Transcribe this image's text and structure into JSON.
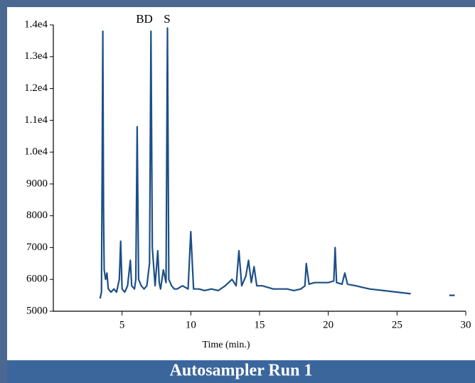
{
  "chart_data": {
    "type": "line",
    "title": "Autosampler Run 1",
    "x_label": "Time (min.)",
    "annotations": [
      "BD",
      "S"
    ],
    "xlim": [
      0,
      30
    ],
    "xticks": [
      5,
      10,
      15,
      20,
      25,
      30
    ],
    "ylim": [
      5000,
      14000
    ],
    "yticks": [
      5000,
      6000,
      7000,
      8000,
      9000,
      {
        "value": 10000,
        "label": "1.0e4"
      },
      {
        "value": 11000,
        "label": "1.1e4"
      },
      {
        "value": 12000,
        "label": "1.2e4"
      },
      {
        "value": 13000,
        "label": "1.3e4"
      },
      {
        "value": 14000,
        "label": "1.4e4"
      }
    ],
    "color": "#1c4f86",
    "x": [
      3.4,
      3.5,
      3.55,
      3.6,
      3.65,
      3.7,
      3.8,
      3.9,
      4.0,
      4.2,
      4.4,
      4.6,
      4.8,
      4.9,
      5.0,
      5.2,
      5.4,
      5.6,
      5.7,
      5.9,
      6.0,
      6.1,
      6.2,
      6.4,
      6.6,
      6.8,
      7.0,
      7.1,
      7.2,
      7.4,
      7.6,
      7.7,
      7.8,
      8.0,
      8.2,
      8.3,
      8.4,
      8.6,
      8.8,
      9.0,
      9.4,
      9.8,
      10.0,
      10.2,
      10.6,
      11.0,
      11.5,
      12.0,
      12.5,
      13.0,
      13.3,
      13.5,
      13.7,
      14.0,
      14.2,
      14.4,
      14.6,
      14.8,
      15.2,
      15.6,
      16.0,
      16.5,
      17.0,
      17.5,
      18.0,
      18.3,
      18.4,
      18.6,
      19.0,
      19.5,
      20.0,
      20.4,
      20.5,
      20.6,
      21.0,
      21.2,
      21.4,
      22.0,
      23.0,
      24.0,
      25.0,
      26.0,
      27.0,
      28.8,
      29.2
    ],
    "values": [
      5400,
      5600,
      9200,
      13800,
      8200,
      6300,
      6000,
      6200,
      5700,
      5600,
      5700,
      5600,
      6000,
      7200,
      5700,
      5600,
      5800,
      6600,
      5800,
      5700,
      6000,
      10800,
      6000,
      5800,
      5700,
      5800,
      6500,
      13800,
      7000,
      5800,
      6900,
      5900,
      5700,
      6300,
      5900,
      13900,
      6000,
      5800,
      5700,
      5700,
      5800,
      5700,
      7500,
      5700,
      5700,
      5650,
      5700,
      5650,
      5800,
      6000,
      5800,
      6900,
      5800,
      6100,
      6600,
      5900,
      6400,
      5800,
      5800,
      5750,
      5700,
      5700,
      5700,
      5650,
      5700,
      5800,
      6500,
      5850,
      5900,
      5900,
      5900,
      5950,
      7000,
      5900,
      5850,
      6200,
      5850,
      5800,
      5700,
      5650,
      5600,
      5550,
      null,
      5500,
      5500
    ]
  }
}
